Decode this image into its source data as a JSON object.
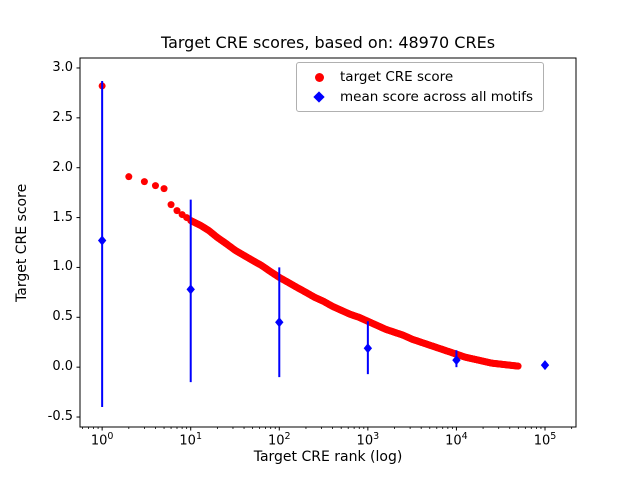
{
  "chart_data": {
    "type": "scatter",
    "title": "Target CRE scores, based on: 48970 CREs",
    "xlabel": "Target CRE rank (log)",
    "ylabel": "Target CRE score",
    "x_scale": "log",
    "x_log10_range": [
      -0.25,
      5.35
    ],
    "ylim": [
      -0.6,
      3.1
    ],
    "y_ticks": [
      -0.5,
      0.0,
      0.5,
      1.0,
      1.5,
      2.0,
      2.5,
      3.0
    ],
    "x_tick_exponents": [
      0,
      1,
      2,
      3,
      4,
      5
    ],
    "grid": false,
    "legend_position": "upper right",
    "series": [
      {
        "name": "target CRE score",
        "type": "scatter",
        "marker": "circle",
        "color": "#ff0000",
        "points": [
          [
            1,
            2.82
          ],
          [
            2,
            1.91
          ],
          [
            3,
            1.86
          ],
          [
            4,
            1.82
          ],
          [
            5,
            1.79
          ],
          [
            6,
            1.63
          ],
          [
            7,
            1.57
          ],
          [
            8,
            1.53
          ],
          [
            9,
            1.5
          ],
          [
            10,
            1.47
          ],
          [
            13,
            1.42
          ],
          [
            16,
            1.37
          ],
          [
            20,
            1.3
          ],
          [
            25,
            1.24
          ],
          [
            32,
            1.17
          ],
          [
            40,
            1.12
          ],
          [
            50,
            1.07
          ],
          [
            63,
            1.02
          ],
          [
            79,
            0.96
          ],
          [
            100,
            0.9
          ],
          [
            126,
            0.85
          ],
          [
            158,
            0.8
          ],
          [
            200,
            0.75
          ],
          [
            251,
            0.7
          ],
          [
            316,
            0.66
          ],
          [
            398,
            0.61
          ],
          [
            501,
            0.57
          ],
          [
            631,
            0.53
          ],
          [
            794,
            0.5
          ],
          [
            1000,
            0.46
          ],
          [
            1259,
            0.42
          ],
          [
            1585,
            0.38
          ],
          [
            1995,
            0.35
          ],
          [
            2512,
            0.32
          ],
          [
            3162,
            0.28
          ],
          [
            3981,
            0.25
          ],
          [
            5012,
            0.22
          ],
          [
            6310,
            0.19
          ],
          [
            7943,
            0.16
          ],
          [
            10000,
            0.13
          ],
          [
            12589,
            0.1
          ],
          [
            15849,
            0.08
          ],
          [
            19953,
            0.06
          ],
          [
            25119,
            0.04
          ],
          [
            31623,
            0.03
          ],
          [
            39811,
            0.02
          ],
          [
            50119,
            0.01
          ]
        ]
      },
      {
        "name": "mean score across all motifs",
        "type": "errorbar",
        "marker": "diamond",
        "color": "#0000ff",
        "x": [
          1,
          10,
          100,
          1000,
          10000,
          100000
        ],
        "y": [
          1.27,
          0.78,
          0.45,
          0.19,
          0.07,
          0.02
        ],
        "y_low": [
          -0.4,
          -0.15,
          -0.1,
          -0.07,
          0.0,
          0.02
        ],
        "y_high": [
          2.87,
          1.68,
          1.0,
          0.46,
          0.17,
          0.02
        ]
      }
    ]
  }
}
